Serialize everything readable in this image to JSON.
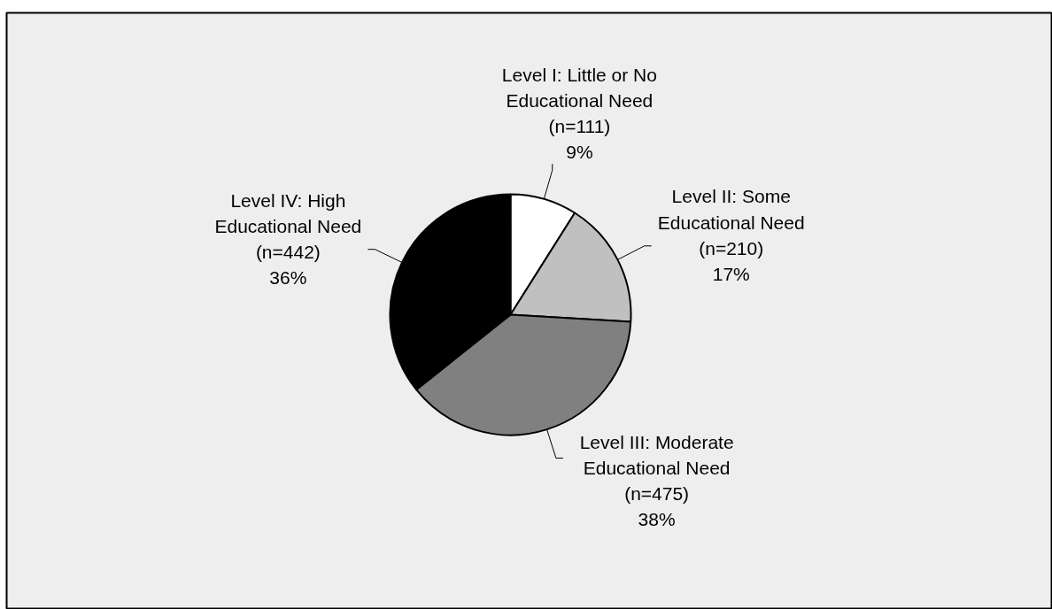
{
  "chart_data": {
    "type": "pie",
    "categories": [
      "Level I: Little or No Educational Need",
      "Level II: Some Educational Need",
      "Level III: Moderate Educational Need",
      "Level IV: High Educational Need"
    ],
    "values": [
      111,
      210,
      475,
      442
    ],
    "colors": [
      "#ffffff",
      "#c0c0c0",
      "#808080",
      "#000000"
    ],
    "value_labels": [
      "(n=111)\n9%",
      "(n=210)\n17%",
      "(n=475)\n38%",
      "(n=442)\n36%"
    ]
  }
}
